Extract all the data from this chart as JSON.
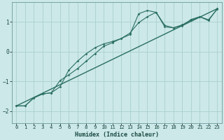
{
  "xlabel": "Humidex (Indice chaleur)",
  "bg_color": "#cce8e8",
  "grid_color": "#aacfcf",
  "line_color": "#2a6e62",
  "spine_color": "#6a9a9a",
  "xlim": [
    -0.5,
    23.5
  ],
  "ylim": [
    -2.4,
    1.65
  ],
  "yticks": [
    -2,
    -1,
    0,
    1
  ],
  "xticks": [
    0,
    1,
    2,
    3,
    4,
    5,
    6,
    7,
    8,
    9,
    10,
    11,
    12,
    13,
    14,
    15,
    16,
    17,
    18,
    19,
    20,
    21,
    22,
    23
  ],
  "curve1_x": [
    0,
    1,
    2,
    3,
    4,
    5,
    6,
    7,
    8,
    9,
    10,
    11,
    12,
    13,
    14,
    15,
    16,
    17,
    18,
    19,
    20,
    21,
    22,
    23
  ],
  "curve1_y": [
    -1.82,
    -1.82,
    -1.55,
    -1.42,
    -1.38,
    -1.18,
    -0.62,
    -0.32,
    -0.07,
    0.13,
    0.26,
    0.34,
    0.44,
    0.57,
    1.27,
    1.38,
    1.32,
    0.88,
    0.8,
    0.87,
    1.08,
    1.17,
    1.07,
    1.42
  ],
  "curve2_x": [
    0,
    1,
    2,
    3,
    4,
    5,
    6,
    7,
    8,
    9,
    10,
    11,
    12,
    13,
    14,
    15,
    16,
    17,
    18,
    19,
    20,
    21,
    22,
    23
  ],
  "curve2_y": [
    -1.82,
    -1.82,
    -1.55,
    -1.42,
    -1.38,
    -0.97,
    -0.78,
    -0.57,
    -0.32,
    -0.07,
    0.18,
    0.3,
    0.44,
    0.62,
    0.97,
    1.17,
    1.32,
    0.83,
    0.8,
    0.9,
    1.05,
    1.17,
    1.04,
    1.44
  ],
  "line_x": [
    0,
    23
  ],
  "line_y": [
    -1.82,
    1.44
  ],
  "xlabel_fontsize": 6.0,
  "tick_fontsize": 5.2
}
